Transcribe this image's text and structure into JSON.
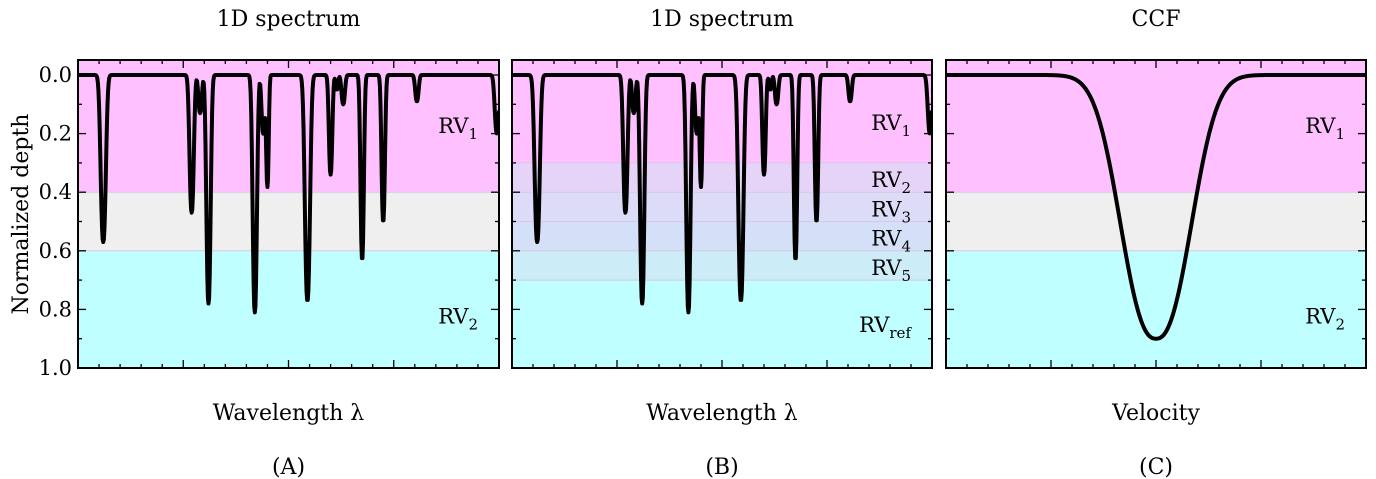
{
  "y_axis_label": "Normalized depth",
  "y_ticks": [
    "0.0",
    "0.2",
    "0.4",
    "0.6",
    "0.8",
    "1.0"
  ],
  "colors": {
    "rv1_band": "#ffc0ff",
    "mid_band": "#efefef",
    "rv2_band": "#c0ffff",
    "line": "#000000"
  },
  "chart_data": [
    {
      "id": "A",
      "type": "line",
      "title": "1D spectrum",
      "xlabel": "Wavelength λ",
      "caption": "(A)",
      "ylabel": "Normalized depth",
      "ylim": [
        0,
        1
      ],
      "y_inverted": true,
      "grid": false,
      "bands": [
        {
          "y0": 0.0,
          "y1": 0.4,
          "color": "#ffc0ff",
          "label": "RV",
          "sub": "1",
          "label_y": 0.17
        },
        {
          "y0": 0.4,
          "y1": 0.6,
          "color": "#efefef",
          "label": "",
          "sub": ""
        },
        {
          "y0": 0.6,
          "y1": 1.0,
          "color": "#c0ffff",
          "label": "RV",
          "sub": "2",
          "label_y": 0.82
        }
      ],
      "lines": [
        {
          "center": 0.06,
          "depth": 0.57,
          "width": 0.006
        },
        {
          "center": 0.27,
          "depth": 0.47,
          "width": 0.005
        },
        {
          "center": 0.29,
          "depth": 0.13,
          "width": 0.004
        },
        {
          "center": 0.31,
          "depth": 0.78,
          "width": 0.005
        },
        {
          "center": 0.42,
          "depth": 0.81,
          "width": 0.005
        },
        {
          "center": 0.44,
          "depth": 0.2,
          "width": 0.004
        },
        {
          "center": 0.45,
          "depth": 0.38,
          "width": 0.003
        },
        {
          "center": 0.545,
          "depth": 0.77,
          "width": 0.006
        },
        {
          "center": 0.6,
          "depth": 0.34,
          "width": 0.004
        },
        {
          "center": 0.615,
          "depth": 0.05,
          "width": 0.003
        },
        {
          "center": 0.63,
          "depth": 0.1,
          "width": 0.004
        },
        {
          "center": 0.675,
          "depth": 0.63,
          "width": 0.004
        },
        {
          "center": 0.725,
          "depth": 0.5,
          "width": 0.004
        },
        {
          "center": 0.805,
          "depth": 0.09,
          "width": 0.004
        },
        {
          "center": 0.995,
          "depth": 0.2,
          "width": 0.005
        }
      ]
    },
    {
      "id": "B",
      "type": "line",
      "title": "1D spectrum",
      "xlabel": "Wavelength λ",
      "caption": "(B)",
      "ylim": [
        0,
        1
      ],
      "y_inverted": true,
      "grid": false,
      "bands": [
        {
          "y0": 0.0,
          "y1": 0.3,
          "color": "#ffc0ff",
          "label": "RV",
          "sub": "1",
          "label_y": 0.16
        },
        {
          "y0": 0.3,
          "y1": 0.4,
          "color": "#e6d4f8",
          "label": "RV",
          "sub": "2",
          "label_y": 0.355
        },
        {
          "y0": 0.4,
          "y1": 0.5,
          "color": "#dcdcf8",
          "label": "RV",
          "sub": "3",
          "label_y": 0.455
        },
        {
          "y0": 0.5,
          "y1": 0.6,
          "color": "#d4e0f8",
          "label": "RV",
          "sub": "4",
          "label_y": 0.555
        },
        {
          "y0": 0.6,
          "y1": 0.7,
          "color": "#ccecf8",
          "label": "RV",
          "sub": "5",
          "label_y": 0.655
        },
        {
          "y0": 0.7,
          "y1": 1.0,
          "color": "#c0ffff",
          "label": "RV",
          "sub": "ref",
          "label_y": 0.85
        }
      ],
      "lines": [
        {
          "center": 0.06,
          "depth": 0.57,
          "width": 0.006
        },
        {
          "center": 0.27,
          "depth": 0.47,
          "width": 0.005
        },
        {
          "center": 0.29,
          "depth": 0.13,
          "width": 0.004
        },
        {
          "center": 0.31,
          "depth": 0.78,
          "width": 0.005
        },
        {
          "center": 0.42,
          "depth": 0.81,
          "width": 0.005
        },
        {
          "center": 0.44,
          "depth": 0.2,
          "width": 0.004
        },
        {
          "center": 0.45,
          "depth": 0.38,
          "width": 0.003
        },
        {
          "center": 0.545,
          "depth": 0.77,
          "width": 0.006
        },
        {
          "center": 0.6,
          "depth": 0.34,
          "width": 0.004
        },
        {
          "center": 0.615,
          "depth": 0.05,
          "width": 0.003
        },
        {
          "center": 0.63,
          "depth": 0.1,
          "width": 0.004
        },
        {
          "center": 0.675,
          "depth": 0.63,
          "width": 0.004
        },
        {
          "center": 0.725,
          "depth": 0.5,
          "width": 0.004
        },
        {
          "center": 0.805,
          "depth": 0.09,
          "width": 0.004
        },
        {
          "center": 0.995,
          "depth": 0.2,
          "width": 0.005
        }
      ]
    },
    {
      "id": "C",
      "type": "line",
      "title": "CCF",
      "xlabel": "Velocity",
      "caption": "(C)",
      "ylim": [
        0,
        1
      ],
      "y_inverted": true,
      "grid": false,
      "bands": [
        {
          "y0": 0.0,
          "y1": 0.4,
          "color": "#ffc0ff",
          "label": "RV",
          "sub": "1",
          "label_y": 0.17
        },
        {
          "y0": 0.4,
          "y1": 0.6,
          "color": "#efefef",
          "label": "",
          "sub": ""
        },
        {
          "y0": 0.6,
          "y1": 1.0,
          "color": "#c0ffff",
          "label": "RV",
          "sub": "2",
          "label_y": 0.82
        }
      ],
      "lines": [
        {
          "center": 0.5,
          "depth": 0.9,
          "width": 0.08
        }
      ]
    }
  ]
}
